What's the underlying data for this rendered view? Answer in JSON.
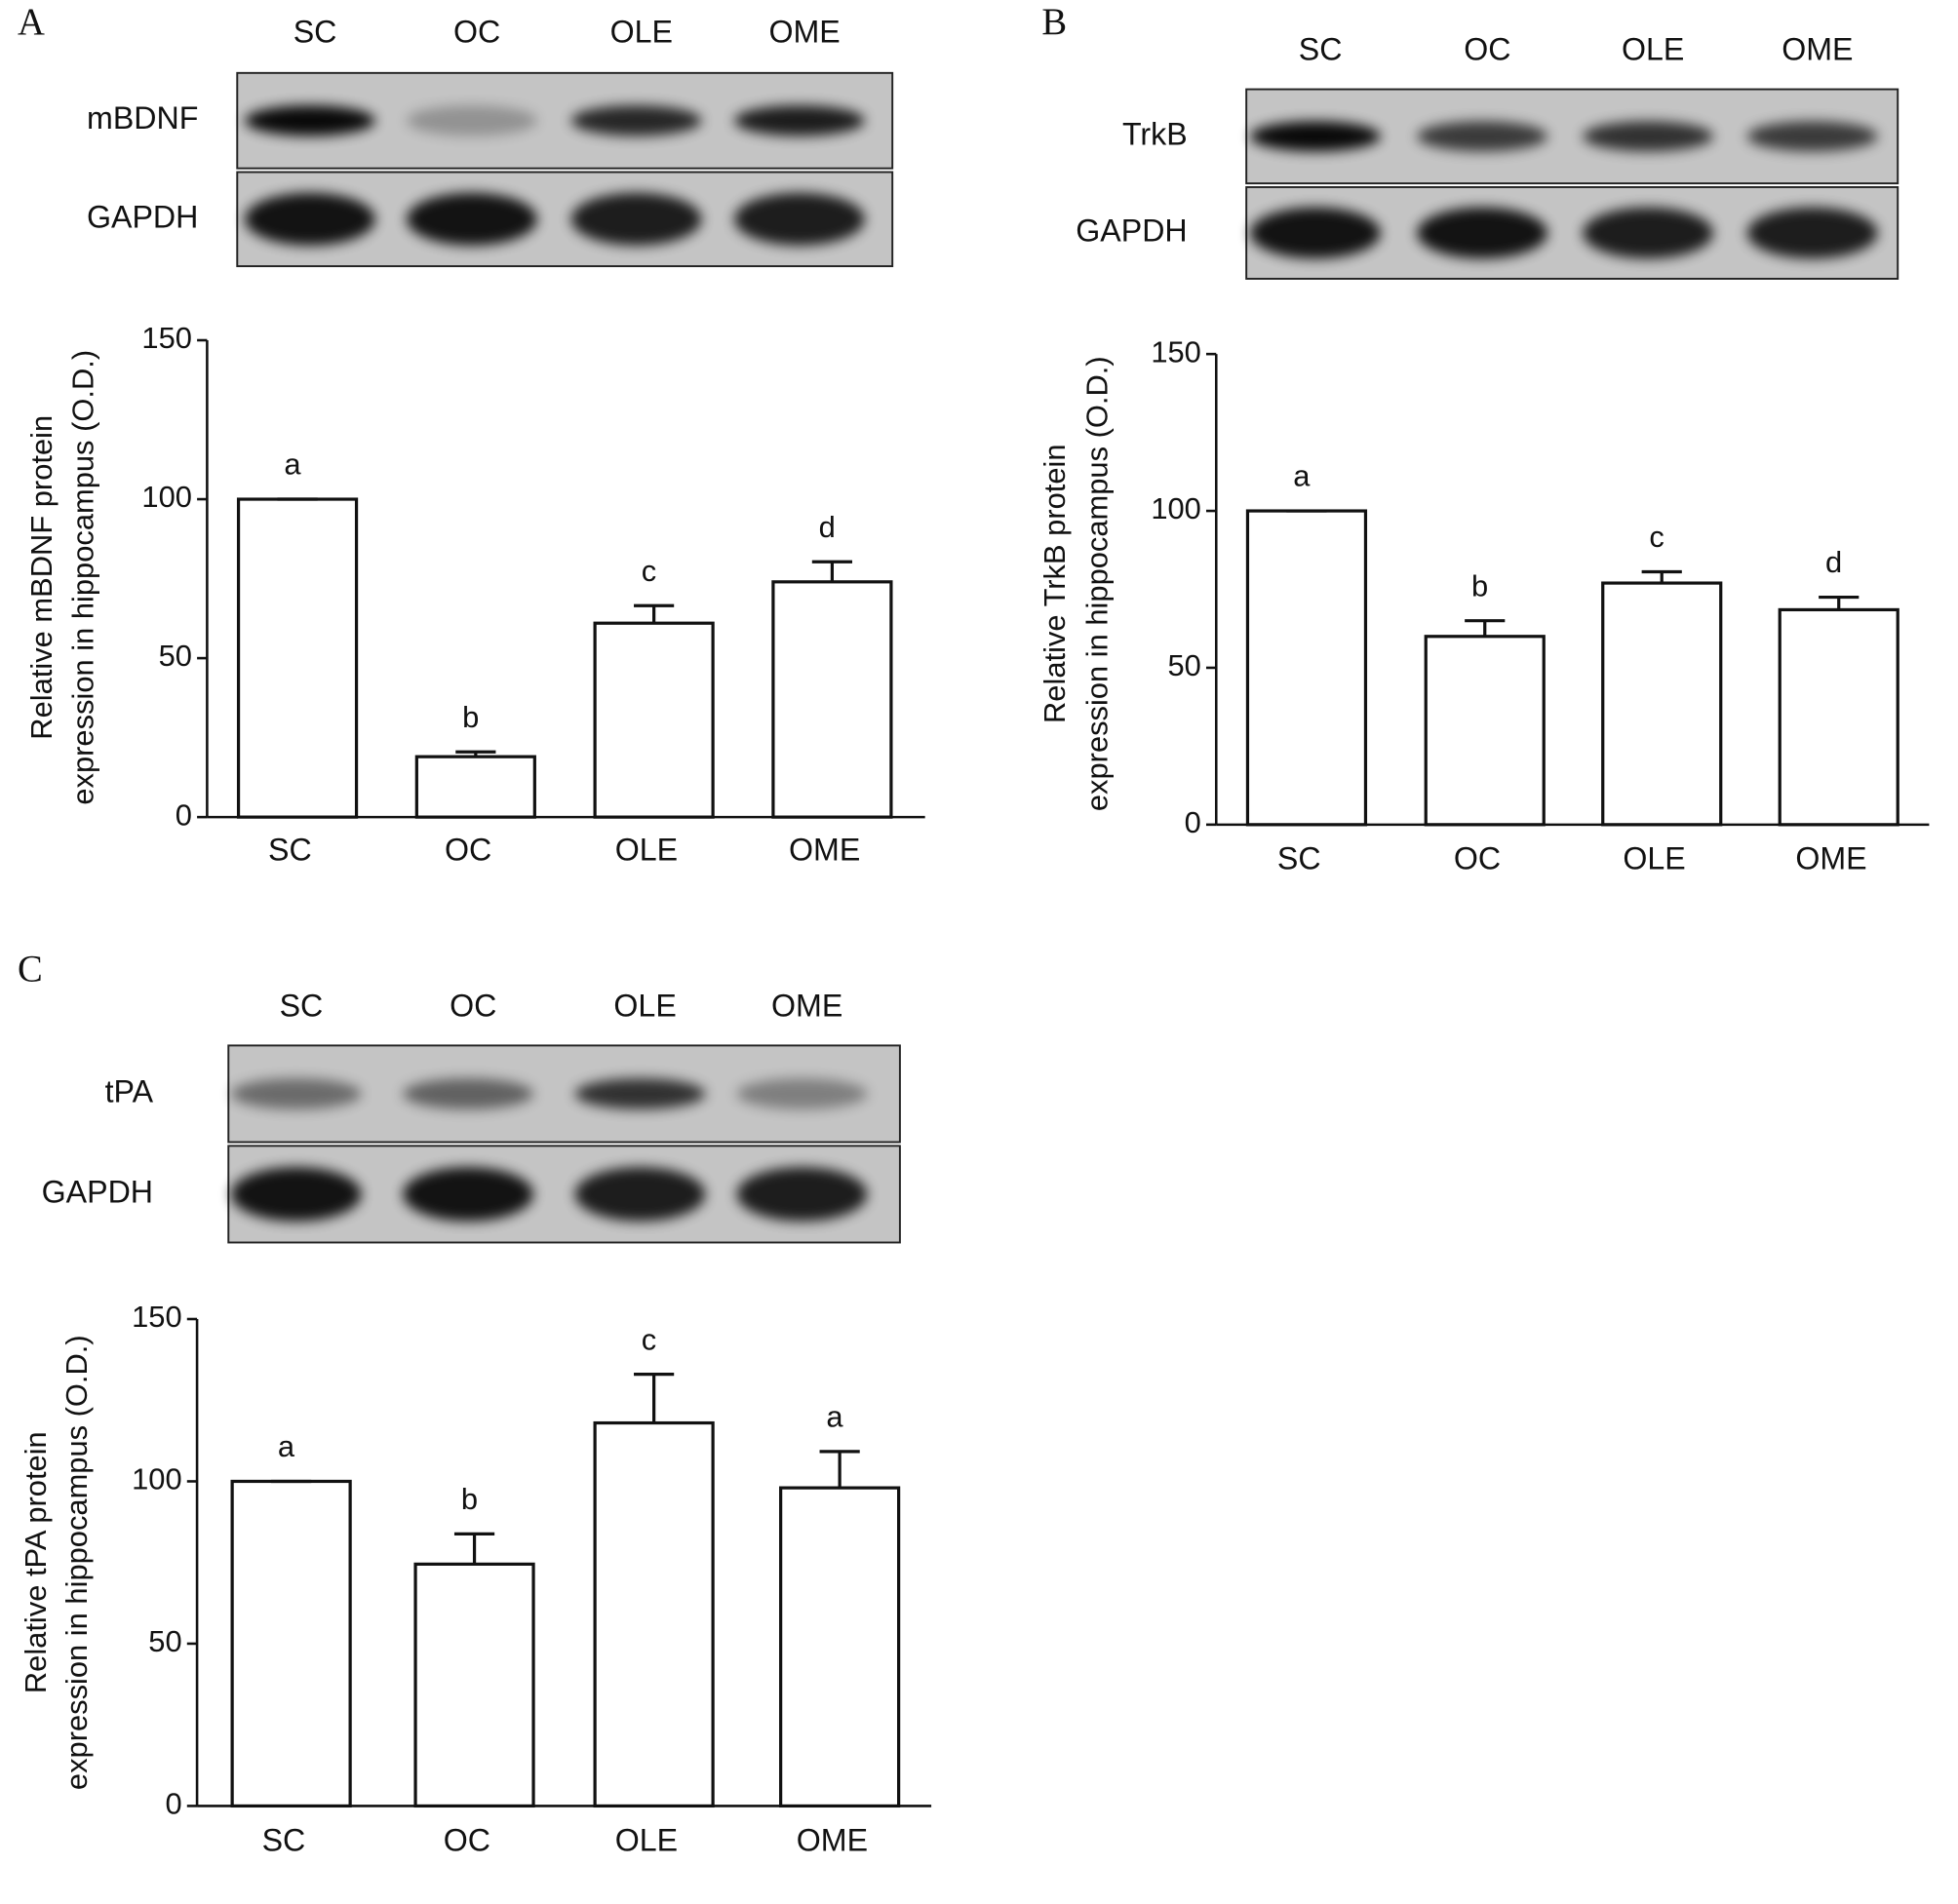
{
  "chart_data": [
    {
      "type": "bar",
      "panel": "A",
      "lanes": [
        "SC",
        "OC",
        "OLE",
        "OME"
      ],
      "blot_rows": [
        "mBDNF",
        "GAPDH"
      ],
      "ylabel": [
        "Relative mBDNF protein",
        "expression in hippocampus (O.D.)"
      ],
      "categories": [
        "SC",
        "OC",
        "OLE",
        "OME"
      ],
      "values": [
        100,
        19,
        61,
        74
      ],
      "errors": [
        0,
        1.5,
        5.5,
        6.3
      ],
      "annotations": [
        "a",
        "b",
        "c",
        "d"
      ],
      "color": "#ffffff",
      "ylim": [
        0,
        150
      ],
      "yticks": [
        0,
        50,
        100,
        150
      ]
    },
    {
      "type": "bar",
      "panel": "B",
      "lanes": [
        "SC",
        "OC",
        "OLE",
        "OME"
      ],
      "blot_rows": [
        "TrkB",
        "GAPDH"
      ],
      "ylabel": [
        "Relative TrkB protein",
        "expression in hippocampus (O.D.)"
      ],
      "categories": [
        "SC",
        "OC",
        "OLE",
        "OME"
      ],
      "values": [
        100,
        60,
        77,
        68.5
      ],
      "errors": [
        0,
        5,
        3.6,
        4
      ],
      "annotations": [
        "a",
        "b",
        "c",
        "d"
      ],
      "color": "#ffffff",
      "ylim": [
        0,
        150
      ],
      "yticks": [
        0,
        50,
        100,
        150
      ]
    },
    {
      "type": "bar",
      "panel": "C",
      "lanes": [
        "SC",
        "OC",
        "OLE",
        "OME"
      ],
      "blot_rows": [
        "tPA",
        "GAPDH"
      ],
      "ylabel": [
        "Relative tPA protein",
        "expression in hippocampus (O.D.)"
      ],
      "categories": [
        "SC",
        "OC",
        "OLE",
        "OME"
      ],
      "values": [
        100,
        74.5,
        118,
        98
      ],
      "errors": [
        0,
        9.3,
        15,
        11.2
      ],
      "annotations": [
        "a",
        "b",
        "c",
        "a"
      ],
      "color": "#ffffff",
      "ylim": [
        0,
        150
      ],
      "yticks": [
        0,
        50,
        100,
        150
      ]
    }
  ]
}
